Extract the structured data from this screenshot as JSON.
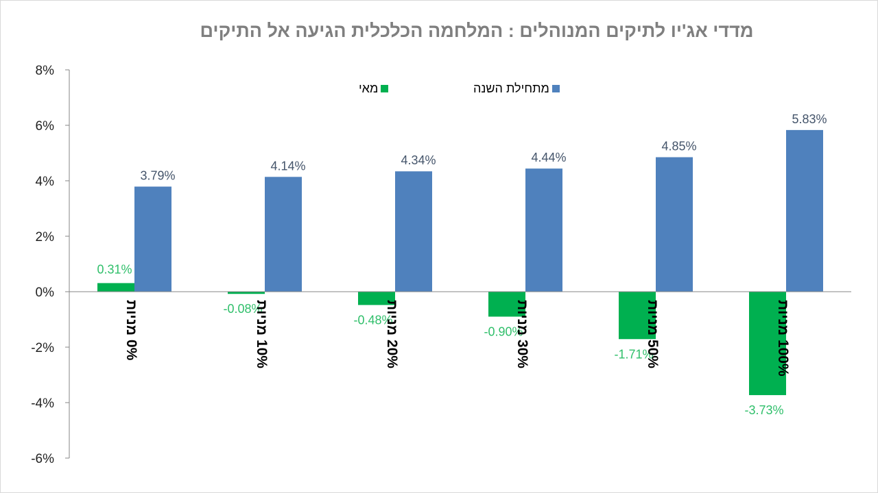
{
  "chart_data": {
    "type": "bar",
    "title": "מדדי אג'יו לתיקים המנוהלים : המלחמה הכלכלית הגיעה אל התיקים",
    "categories": [
      "0% מניות",
      "10% מניות",
      "20% מניות",
      "30% מניות",
      "50% מניות",
      "100% מניות"
    ],
    "series": [
      {
        "name": "מאי",
        "color": "#00b050",
        "label_color": "#2fbf6a",
        "values": [
          0.31,
          -0.08,
          -0.48,
          -0.9,
          -1.71,
          -3.73
        ],
        "labels": [
          "0.31%",
          "-0.08%",
          "-0.48%",
          "-0.90%",
          "-1.71%",
          "-3.73%"
        ]
      },
      {
        "name": "מתחילת השנה",
        "color": "#4f81bd",
        "label_color": "#44546a",
        "values": [
          3.79,
          4.14,
          4.34,
          4.44,
          4.85,
          5.83
        ],
        "labels": [
          "3.79%",
          "4.14%",
          "4.34%",
          "4.44%",
          "4.85%",
          "5.83%"
        ]
      }
    ],
    "ylim": [
      -6,
      8
    ],
    "yticks": [
      "-6%",
      "-4%",
      "-2%",
      "0%",
      "2%",
      "4%",
      "6%",
      "8%"
    ],
    "ytick_values": [
      -6,
      -4,
      -2,
      0,
      2,
      4,
      6,
      8
    ],
    "grid": false,
    "legend": "top-center",
    "xlabel": "",
    "ylabel": ""
  }
}
